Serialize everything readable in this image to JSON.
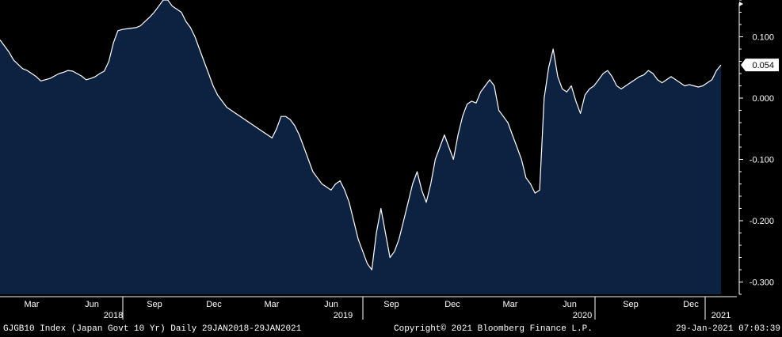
{
  "chart_data": {
    "type": "area",
    "series": [
      {
        "values": [
          0.095,
          0.085,
          0.075,
          0.062,
          0.055,
          0.048,
          0.045,
          0.04,
          0.035,
          0.028,
          0.03,
          0.032,
          0.036,
          0.04,
          0.042,
          0.045,
          0.044,
          0.04,
          0.036,
          0.03,
          0.032,
          0.035,
          0.04,
          0.044,
          0.06,
          0.09,
          0.11,
          0.112,
          0.113,
          0.114,
          0.115,
          0.118,
          0.125,
          0.132,
          0.14,
          0.15,
          0.16,
          0.16,
          0.15,
          0.145,
          0.14,
          0.125,
          0.115,
          0.1,
          0.08,
          0.06,
          0.04,
          0.02,
          0.005,
          -0.005,
          -0.015,
          -0.02,
          -0.025,
          -0.03,
          -0.035,
          -0.04,
          -0.045,
          -0.05,
          -0.055,
          -0.06,
          -0.065,
          -0.05,
          -0.03,
          -0.03,
          -0.035,
          -0.045,
          -0.06,
          -0.08,
          -0.1,
          -0.12,
          -0.13,
          -0.14,
          -0.145,
          -0.15,
          -0.14,
          -0.135,
          -0.15,
          -0.17,
          -0.2,
          -0.23,
          -0.25,
          -0.27,
          -0.28,
          -0.22,
          -0.18,
          -0.22,
          -0.26,
          -0.25,
          -0.23,
          -0.2,
          -0.17,
          -0.14,
          -0.12,
          -0.15,
          -0.17,
          -0.14,
          -0.1,
          -0.08,
          -0.06,
          -0.08,
          -0.1,
          -0.06,
          -0.03,
          -0.01,
          -0.005,
          -0.008,
          0.01,
          0.02,
          0.03,
          0.02,
          -0.02,
          -0.03,
          -0.04,
          -0.06,
          -0.08,
          -0.1,
          -0.13,
          -0.14,
          -0.155,
          -0.15,
          0.0,
          0.05,
          0.08,
          0.035,
          0.015,
          0.01,
          0.02,
          -0.005,
          -0.025,
          0.005,
          0.015,
          0.02,
          0.03,
          0.04,
          0.045,
          0.035,
          0.02,
          0.015,
          0.02,
          0.025,
          0.03,
          0.035,
          0.038,
          0.045,
          0.04,
          0.03,
          0.025,
          0.03,
          0.035,
          0.03,
          0.025,
          0.02,
          0.022,
          0.02,
          0.018,
          0.02,
          0.025,
          0.03,
          0.045,
          0.054
        ]
      }
    ],
    "ylim": [
      -0.32,
      0.16
    ],
    "y_ticks": [
      "0.100",
      "0.000",
      "-0.100",
      "-0.200",
      "-0.300"
    ],
    "x_month_labels": [
      "Mar",
      "Jun",
      "Sep",
      "Dec",
      "Mar",
      "Jun",
      "Sep",
      "Dec",
      "Mar",
      "Jun",
      "Sep",
      "Dec"
    ],
    "x_year_labels": [
      "2018",
      "2019",
      "2020",
      "2021"
    ],
    "last_value_label": "0.054",
    "grid": false,
    "legend": "none",
    "colors": {
      "fill": "#0d2240",
      "line": "#ffffff",
      "background": "#000000"
    }
  },
  "footer": {
    "left": "GJGB10 Index (Japan Govt 10 Yr)  Daily 29JAN2018-29JAN2021",
    "center": "Copyright© 2021 Bloomberg Finance L.P.",
    "right": "29-Jan-2021 07:03:39"
  }
}
